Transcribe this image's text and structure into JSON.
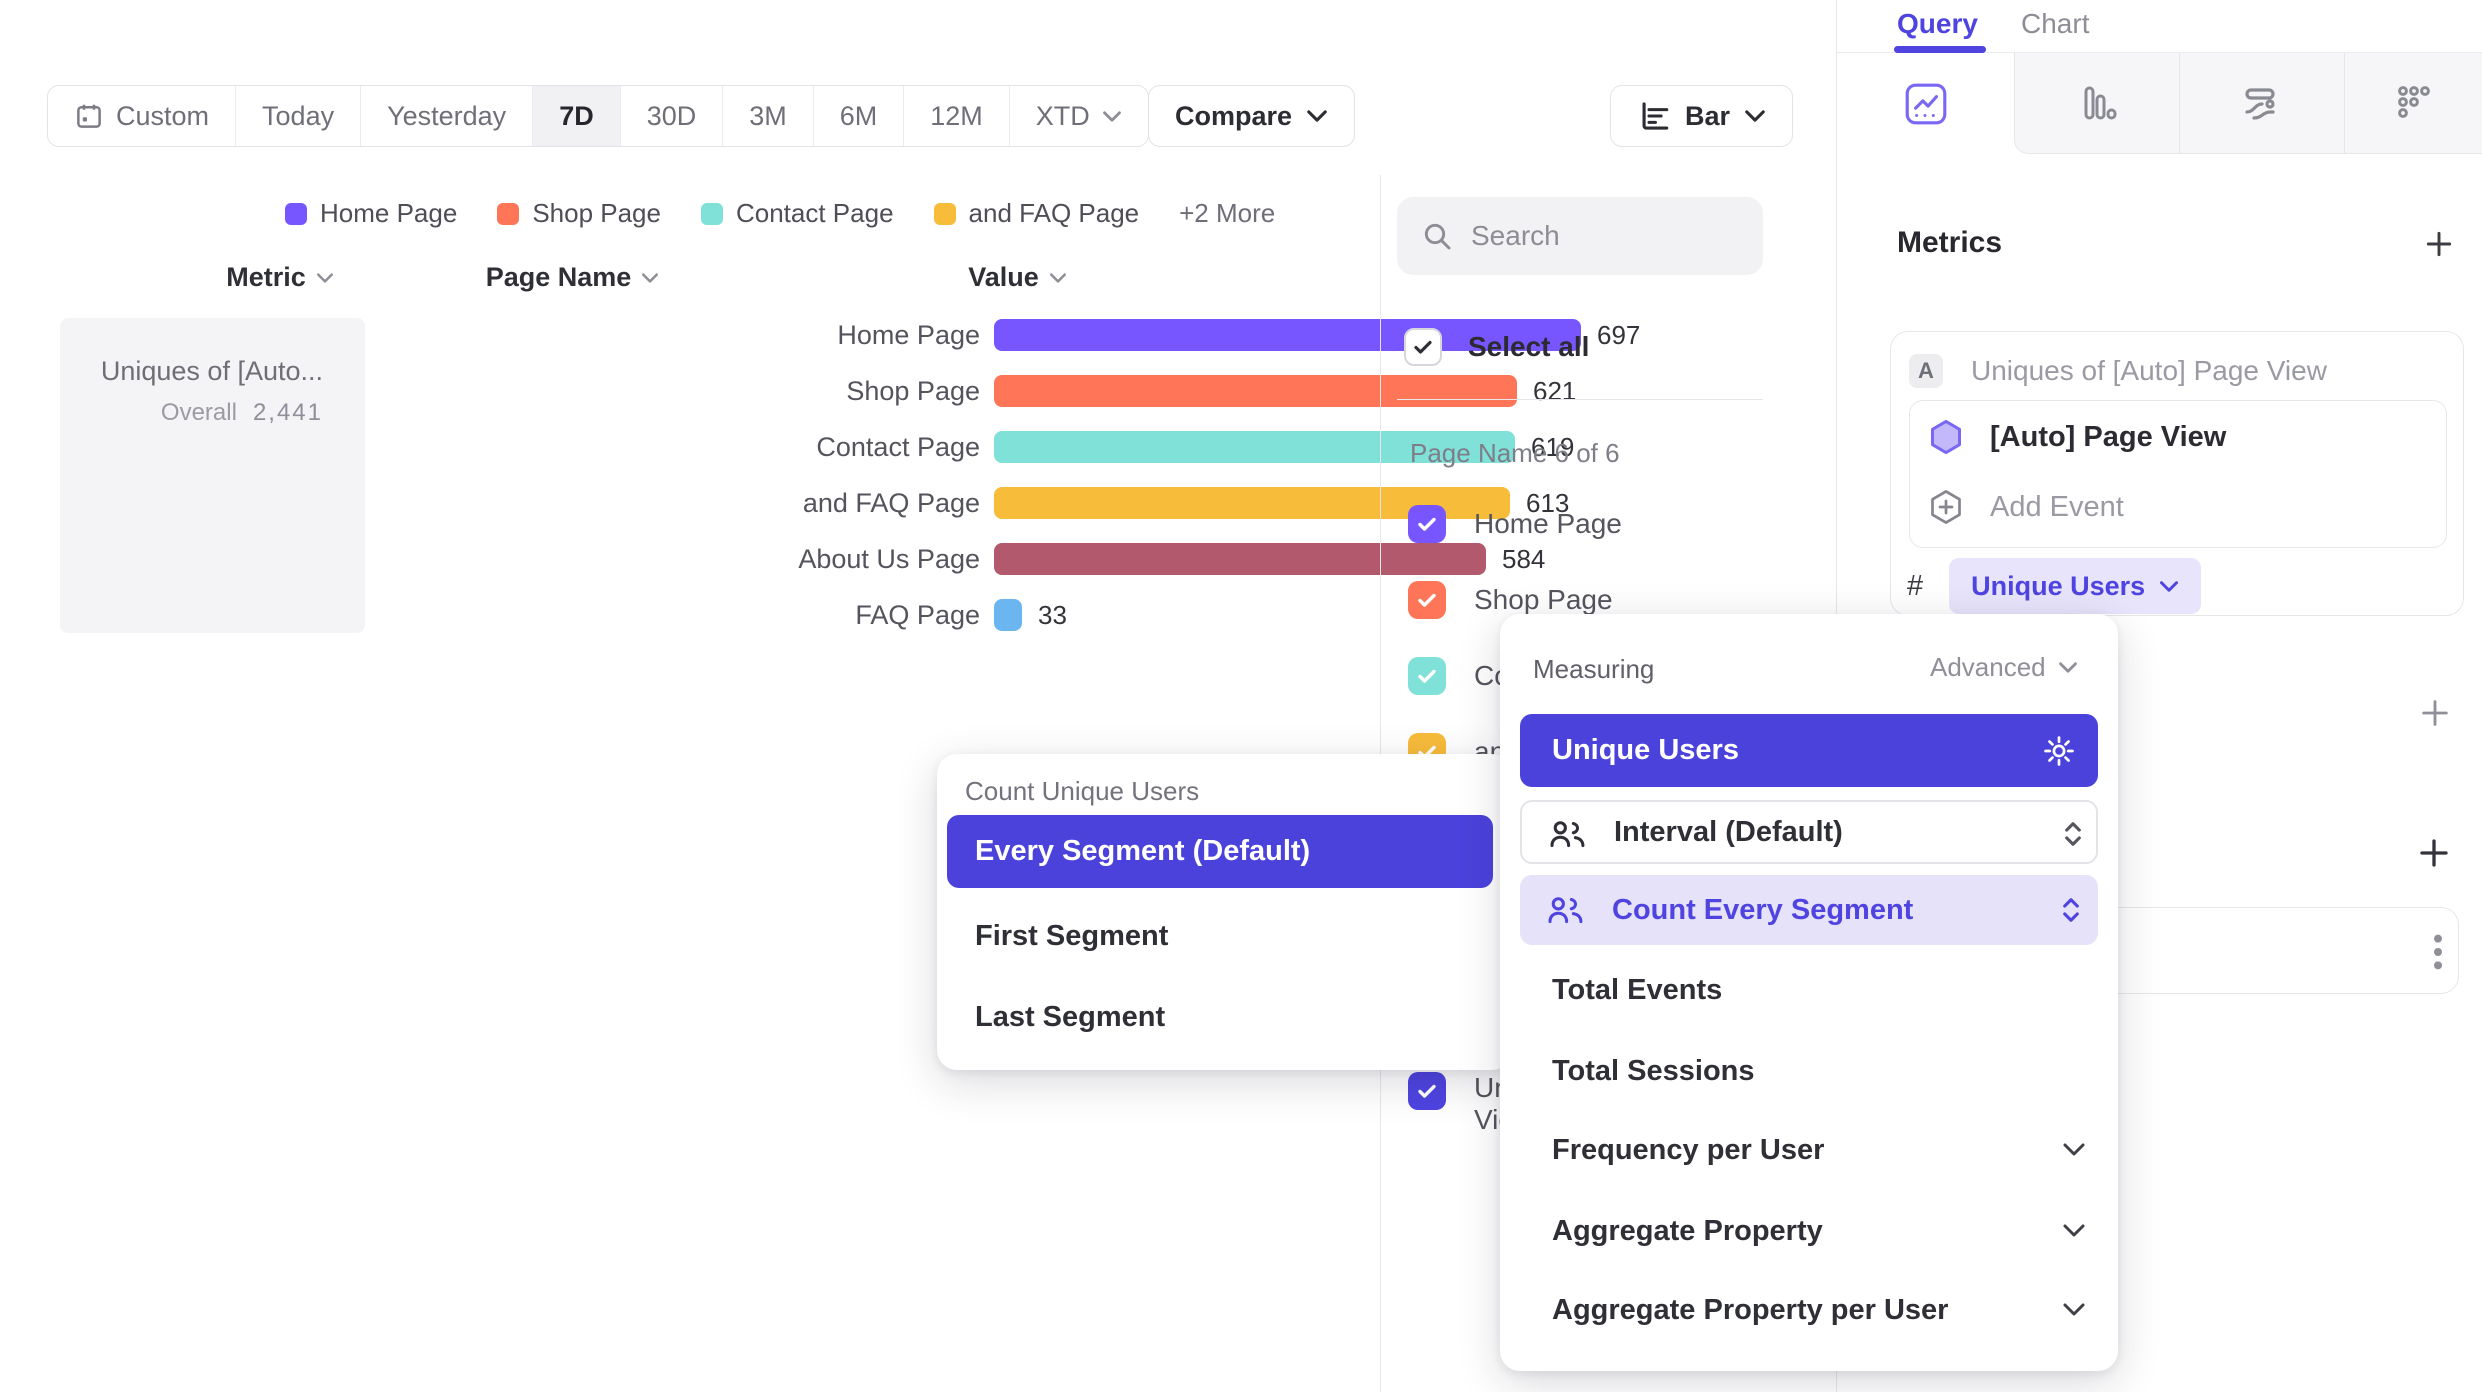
{
  "toolbar": {
    "date_ranges": [
      "Custom",
      "Today",
      "Yesterday",
      "7D",
      "30D",
      "3M",
      "6M",
      "12M",
      "XTD"
    ],
    "active_range": "7D",
    "compare_label": "Compare",
    "chart_type": "Bar"
  },
  "legend": {
    "items": [
      {
        "label": "Home Page",
        "color": "#7856FF"
      },
      {
        "label": "Shop Page",
        "color": "#FF7557"
      },
      {
        "label": "Contact Page",
        "color": "#80E1D9"
      },
      {
        "label": "and FAQ Page",
        "color": "#F8BC3B"
      }
    ],
    "more_label": "+2 More"
  },
  "table_headers": {
    "metric": "Metric",
    "page_name": "Page Name",
    "value": "Value"
  },
  "metric_summary": {
    "title": "Uniques of [Auto...",
    "overall_label": "Overall",
    "overall_value": "2,441"
  },
  "chart_data": {
    "type": "bar",
    "orientation": "horizontal",
    "series_name": "Uniques of [Auto] Page View",
    "categories": [
      "Home Page",
      "Shop Page",
      "Contact Page",
      "and FAQ Page",
      "About Us Page",
      "FAQ Page"
    ],
    "values": [
      697,
      621,
      619,
      613,
      584,
      33
    ],
    "colors": [
      "#7856FF",
      "#FF7557",
      "#80E1D9",
      "#F8BC3B",
      "#B2596E",
      "#6BB6F0"
    ],
    "overall_total": "2,441",
    "xlim": [
      0,
      700
    ],
    "grid": false,
    "legend_position": "top"
  },
  "filter_panel": {
    "search_placeholder": "Search",
    "select_all_label": "Select all",
    "group_label": "Page Name 6 of 6",
    "items": [
      {
        "label": "Home Page",
        "color": "#7856FF",
        "checked": true
      },
      {
        "label": "Shop Page",
        "color": "#FF7557",
        "checked": true
      },
      {
        "label": "Contact Page",
        "color": "#80E1D9",
        "checked": true
      },
      {
        "label": "and FAQ Page",
        "color": "#F8BC3B",
        "checked": true
      },
      {
        "label": "About Us Page",
        "color": "#B2596E",
        "checked": true
      },
      {
        "label": "FAQ Page",
        "color": "#6BB6F0",
        "checked": true
      }
    ],
    "metric_item": {
      "line1": "Uniques of [Auto] Page",
      "line2": "View",
      "color": "#4F44E0",
      "checked": true
    }
  },
  "query_panel": {
    "tabs": [
      {
        "label": "Query",
        "active": true
      },
      {
        "label": "Chart",
        "active": false
      }
    ],
    "metrics_title": "Metrics",
    "metric_card": {
      "badge": "A",
      "title": "Uniques of [Auto] Page View",
      "event_label": "[Auto] Page View",
      "add_event_label": "Add Event",
      "hash_symbol": "#",
      "measurement": "Unique Users"
    }
  },
  "count_popup": {
    "title": "Count Unique Users",
    "options": [
      "Every Segment (Default)",
      "First Segment",
      "Last Segment"
    ],
    "selected": "Every Segment (Default)"
  },
  "measuring_popup": {
    "title": "Measuring",
    "mode_label": "Advanced",
    "selected_option": "Unique Users",
    "interval_label": "Interval (Default)",
    "count_label": "Count Every Segment",
    "simple_options": [
      "Total Events",
      "Total Sessions"
    ],
    "expandable_options": [
      "Frequency per User",
      "Aggregate Property",
      "Aggregate Property per User"
    ]
  },
  "colors": {
    "accent": "#4F44E0",
    "accent_light": "#E7E4FB",
    "selected_row": "#4B42DC"
  }
}
